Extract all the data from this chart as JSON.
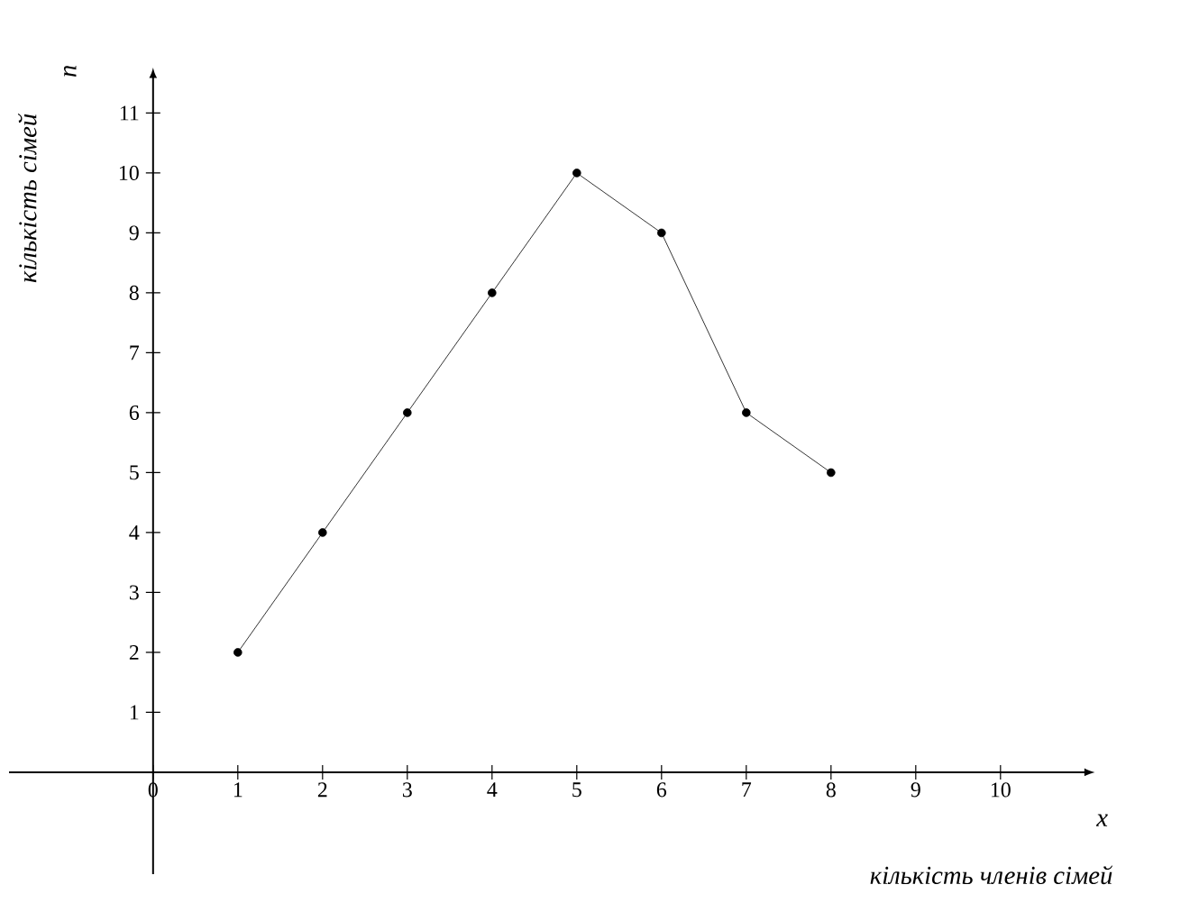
{
  "chart_data": {
    "type": "line",
    "xlabel": "кількість членів сімей",
    "ylabel": "кількість сімей",
    "annotations": [
      "x",
      "n"
    ],
    "x": [
      1,
      2,
      3,
      4,
      5,
      6,
      7,
      8
    ],
    "series": [
      {
        "color": "#000000",
        "values": [
          2,
          4,
          6,
          8,
          10,
          9,
          6,
          5
        ]
      }
    ],
    "xlim": [
      -1.7,
      11
    ],
    "ylim": [
      -1.7,
      11.6
    ],
    "xticks": [
      0,
      1,
      2,
      3,
      4,
      5,
      6,
      7,
      8,
      9,
      10
    ],
    "yticks": [
      1,
      2,
      3,
      4,
      5,
      6,
      7,
      8,
      9,
      10,
      11
    ],
    "marker": "circle",
    "line_style": "solid",
    "grid": false
  }
}
